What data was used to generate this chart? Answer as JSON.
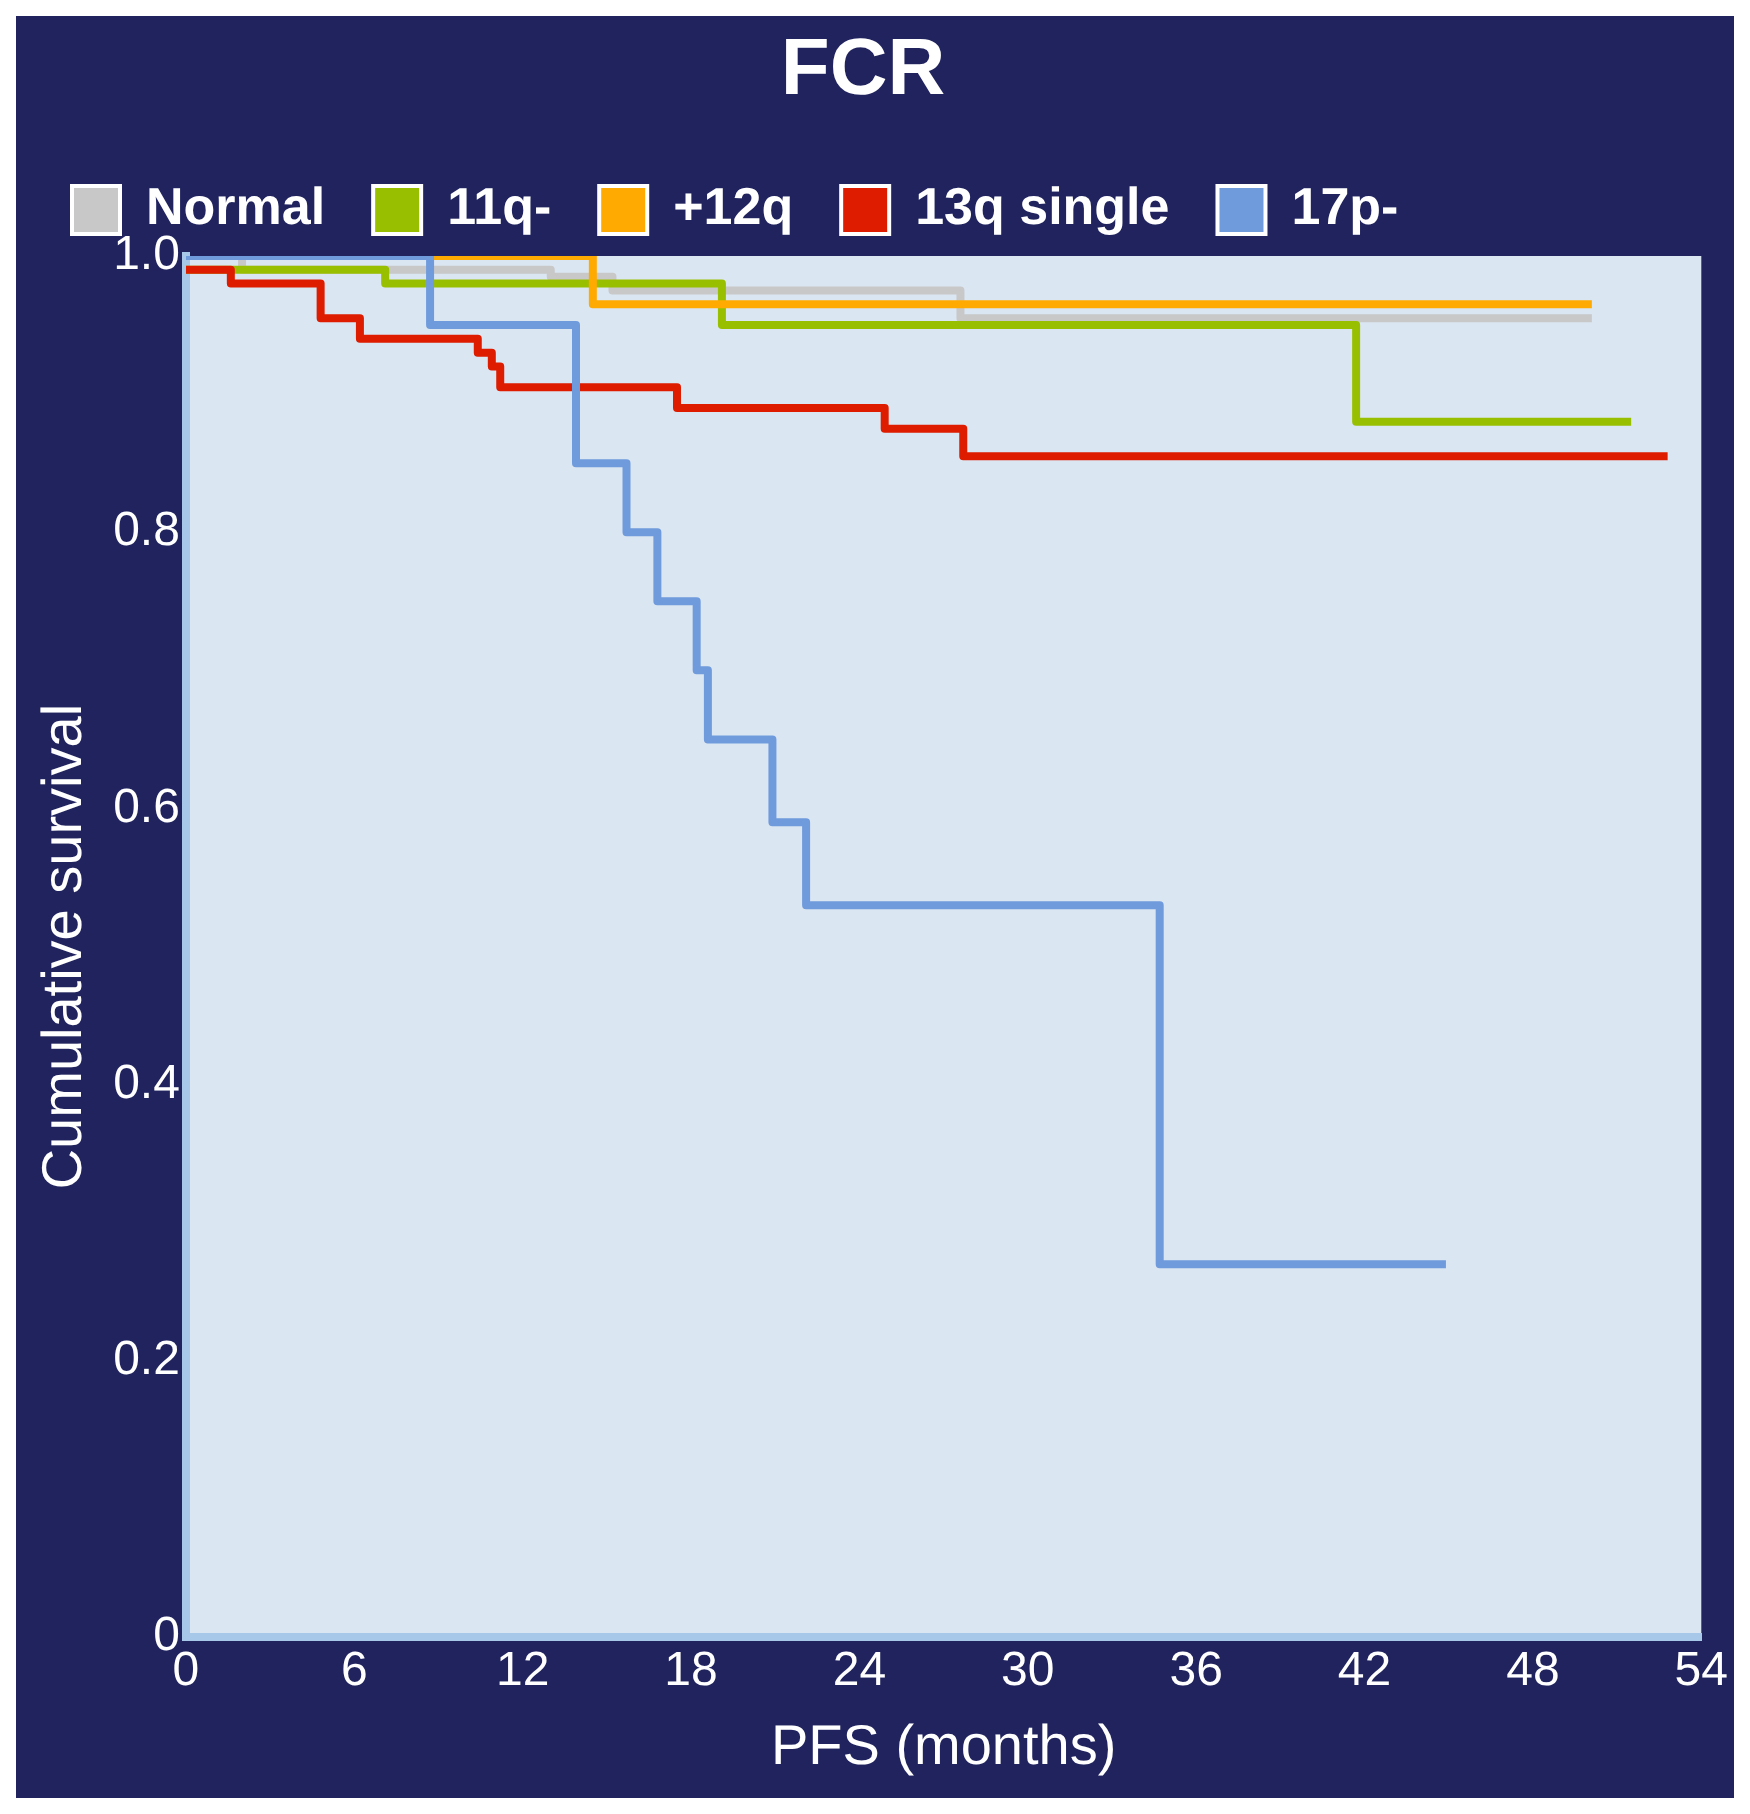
{
  "chart_data": {
    "type": "step",
    "title": "FCR",
    "xlabel": "PFS (months)",
    "ylabel": "Cumulative survival",
    "legend": "top left",
    "grid": false,
    "marker": "none",
    "xlim": [
      0,
      54
    ],
    "xticks": [
      0,
      6,
      12,
      18,
      24,
      30,
      36,
      42,
      48,
      54
    ],
    "ylim": [
      0,
      1
    ],
    "yticks": [
      {
        "value": 0,
        "label": "0"
      },
      0.2,
      0.4,
      0.6,
      0.8,
      {
        "value": 1,
        "label": "1.0"
      }
    ],
    "series": [
      {
        "name": "Normal",
        "color": "#c8c8c8",
        "x": [
          0,
          2,
          13,
          15.2,
          27.6,
          50.1
        ],
        "values": [
          1,
          0.99,
          0.985,
          0.975,
          0.955,
          0.955
        ]
      },
      {
        "name": "11q-",
        "color": "#99c000",
        "x": [
          0,
          7.1,
          19.1,
          41.7,
          51.5
        ],
        "values": [
          0.99,
          0.98,
          0.95,
          0.88,
          0.88
        ]
      },
      {
        "name": "+12q",
        "color": "#ffaa00",
        "x": [
          0,
          14.5,
          50.1
        ],
        "values": [
          1,
          0.965,
          0.965
        ]
      },
      {
        "name": "13q single",
        "color": "#dd1c00",
        "x": [
          0,
          1.6,
          4.8,
          6.2,
          10.4,
          10.9,
          11.2,
          17.5,
          24.9,
          27.7,
          52.8
        ],
        "values": [
          0.99,
          0.98,
          0.955,
          0.94,
          0.93,
          0.92,
          0.905,
          0.89,
          0.875,
          0.855,
          0.855
        ]
      },
      {
        "name": "17p-",
        "color": "#6f9bdc",
        "x": [
          0,
          8.7,
          13.9,
          15.7,
          16.8,
          18.2,
          18.6,
          20.9,
          22.1,
          34.7,
          44.9
        ],
        "values": [
          1,
          0.95,
          0.85,
          0.8,
          0.75,
          0.7,
          0.65,
          0.59,
          0.53,
          0.27,
          0.27
        ]
      }
    ]
  }
}
